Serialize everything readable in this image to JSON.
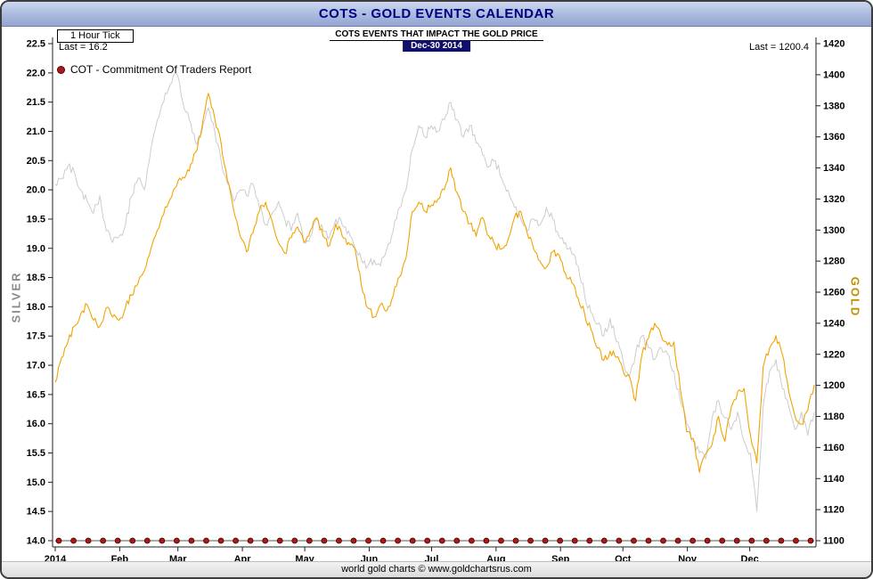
{
  "window": {
    "title": "COTS - GOLD EVENTS CALENDAR"
  },
  "header": {
    "tick_label": "1 Hour Tick",
    "subtitle": "COTS EVENTS THAT IMPACT THE GOLD PRICE",
    "date": "Dec-30 2014",
    "last_silver": "Last = 16.2",
    "last_gold": "Last = 1200.4"
  },
  "legend": {
    "cot_label": "COT - Commitment Of Traders Report"
  },
  "axes": {
    "left_title": "SILVER",
    "right_title": "GOLD",
    "left_ticks": [
      "22.5",
      "22.0",
      "21.5",
      "21.0",
      "20.5",
      "20.0",
      "19.5",
      "19.0",
      "18.5",
      "18.0",
      "17.5",
      "17.0",
      "16.5",
      "16.0",
      "15.5",
      "15.0",
      "14.5",
      "14.0"
    ],
    "right_ticks": [
      1420,
      1400,
      1380,
      1360,
      1340,
      1320,
      1300,
      1280,
      1260,
      1240,
      1220,
      1200,
      1180,
      1160,
      1140,
      1120,
      1100
    ],
    "x_ticks": [
      "2014",
      "Feb",
      "Mar",
      "Apr",
      "May",
      "Jun",
      "Jul",
      "Aug",
      "Sep",
      "Oct",
      "Nov",
      "Dec"
    ]
  },
  "footer": {
    "credit": "world gold charts © www.goldchartsrus.com"
  },
  "colors": {
    "gold_line": "#F2A300",
    "silver_line": "#CCCCCC",
    "cot_marker": "#B01818",
    "cot_marker_edge": "#3a0000",
    "title_text": "#000080",
    "axis_line": "#222222"
  },
  "chart_data": {
    "type": "line",
    "title": "COTS - GOLD EVENTS CALENDAR",
    "subtitle": "COTS EVENTS THAT IMPACT THE GOLD PRICE",
    "as_of_date": "Dec-30 2014",
    "left_axis": {
      "label": "SILVER",
      "min": 14.0,
      "max": 22.5,
      "tick_step": 0.5
    },
    "right_axis": {
      "label": "GOLD",
      "min": 1100,
      "max": 1420,
      "tick_step": 20
    },
    "x_axis": {
      "labels": [
        "2014",
        "Feb",
        "Mar",
        "Apr",
        "May",
        "Jun",
        "Jul",
        "Aug",
        "Sep",
        "Oct",
        "Nov",
        "Dec"
      ],
      "span": "Jan 2014 - Dec 30 2014"
    },
    "last_values": {
      "silver": 16.2,
      "gold": 1200.4
    },
    "series": [
      {
        "name": "Silver price (left axis)",
        "axis": "left",
        "color_key": "silver_line",
        "values": [
          20.1,
          20.2,
          20.4,
          20.3,
          20.0,
          19.8,
          19.6,
          19.9,
          19.3,
          19.1,
          19.2,
          19.4,
          19.9,
          20.2,
          20.0,
          20.7,
          21.2,
          21.5,
          21.8,
          22.0,
          21.5,
          21.2,
          20.8,
          21.0,
          21.4,
          21.0,
          20.5,
          20.1,
          19.8,
          20.0,
          19.9,
          20.1,
          19.7,
          19.4,
          19.6,
          19.8,
          19.5,
          19.3,
          19.6,
          19.1,
          19.2,
          19.5,
          19.3,
          19.2,
          19.5,
          19.4,
          19.3,
          19.0,
          18.8,
          18.7,
          18.8,
          18.7,
          19.0,
          19.3,
          19.7,
          20.0,
          20.7,
          21.1,
          20.9,
          21.1,
          21.0,
          21.2,
          21.5,
          21.2,
          20.9,
          21.1,
          20.8,
          20.6,
          20.4,
          20.5,
          20.2,
          20.0,
          19.7,
          19.5,
          19.3,
          19.5,
          19.4,
          19.7,
          19.5,
          19.2,
          19.1,
          18.9,
          18.7,
          18.2,
          17.9,
          17.7,
          17.5,
          17.8,
          17.4,
          17.1,
          16.8,
          17.2,
          17.5,
          17.3,
          17.1,
          17.3,
          17.2,
          16.9,
          16.4,
          16.0,
          15.7,
          15.5,
          15.4,
          16.1,
          16.4,
          16.1,
          15.9,
          16.2,
          15.7,
          15.5,
          14.5,
          16.3,
          16.9,
          17.1,
          16.6,
          16.3,
          15.9,
          16.2,
          15.8,
          16.2
        ]
      },
      {
        "name": "Gold price (right axis)",
        "axis": "right",
        "color_key": "gold_line",
        "values": [
          1202,
          1218,
          1228,
          1238,
          1246,
          1252,
          1242,
          1238,
          1250,
          1244,
          1242,
          1250,
          1258,
          1266,
          1274,
          1288,
          1300,
          1310,
          1320,
          1328,
          1334,
          1338,
          1350,
          1366,
          1388,
          1372,
          1356,
          1332,
          1312,
          1296,
          1286,
          1298,
          1312,
          1318,
          1306,
          1292,
          1285,
          1295,
          1302,
          1292,
          1300,
          1308,
          1296,
          1290,
          1304,
          1296,
          1292,
          1288,
          1264,
          1250,
          1244,
          1252,
          1248,
          1258,
          1270,
          1282,
          1312,
          1318,
          1312,
          1316,
          1320,
          1326,
          1340,
          1324,
          1312,
          1304,
          1296,
          1308,
          1296,
          1290,
          1288,
          1294,
          1308,
          1312,
          1298,
          1288,
          1280,
          1276,
          1286,
          1284,
          1272,
          1266,
          1256,
          1246,
          1236,
          1224,
          1216,
          1222,
          1218,
          1210,
          1206,
          1190,
          1220,
          1230,
          1240,
          1232,
          1226,
          1228,
          1198,
          1170,
          1166,
          1144,
          1156,
          1162,
          1180,
          1164,
          1186,
          1196,
          1198,
          1168,
          1150,
          1212,
          1224,
          1232,
          1220,
          1196,
          1180,
          1175,
          1184,
          1200.4
        ]
      }
    ],
    "cot_markers": {
      "label": "COT - Commitment Of Traders Report",
      "value_on_left_axis": 14.0,
      "count": 52
    }
  }
}
